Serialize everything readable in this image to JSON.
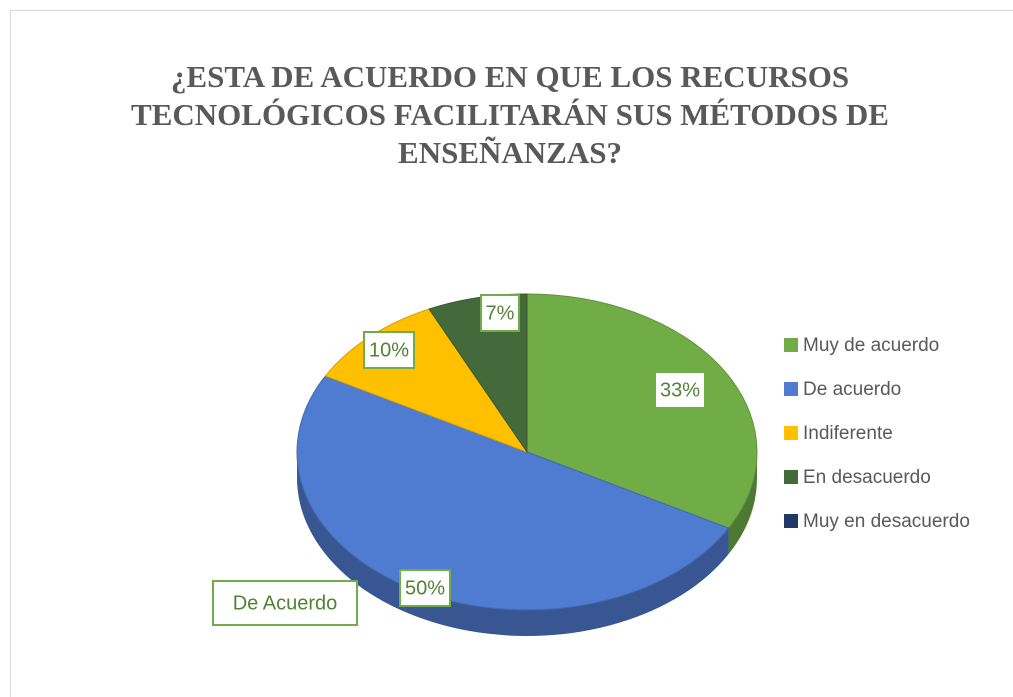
{
  "chart_data": {
    "type": "pie3d",
    "title": "¿ESTA DE ACUERDO EN QUE LOS RECURSOS TECNOLÓGICOS FACILITARÁN SUS MÉTODOS  DE ENSEÑANZAS?",
    "categories": [
      "Muy de acuerdo",
      "De acuerdo",
      "Indiferente",
      "En desacuerdo",
      "Muy en desacuerdo"
    ],
    "values": [
      33,
      50,
      10,
      7,
      0
    ],
    "value_labels": [
      "33%",
      "50%",
      "10%",
      "7%",
      null
    ],
    "colors": [
      "#70ad47",
      "#4f7bd0",
      "#ffc000",
      "#44693a",
      "#203864"
    ],
    "legend": "right",
    "annotation": "De Acuerdo"
  }
}
